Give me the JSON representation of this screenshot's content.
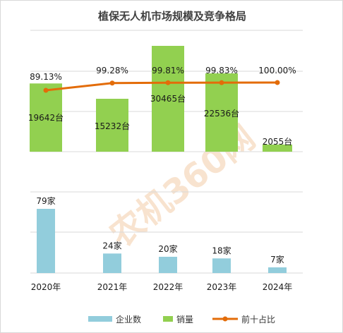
{
  "chart_data": {
    "type": "bar",
    "title": "植保无人机市场规模及竞争格局",
    "categories": [
      "2020年",
      "2021年",
      "2022年",
      "2023年",
      "2024年"
    ],
    "series": [
      {
        "name": "企业数",
        "type": "bar",
        "values": [
          79,
          24,
          20,
          18,
          7
        ],
        "labels": [
          "79家",
          "24家",
          "20家",
          "18家",
          "7家"
        ],
        "color": "#92cddc"
      },
      {
        "name": "销量",
        "type": "bar",
        "values": [
          19642,
          15232,
          30465,
          22536,
          2055
        ],
        "labels": [
          "19642台",
          "15232台",
          "30465台",
          "22536台",
          "2055台"
        ],
        "color": "#92d050"
      },
      {
        "name": "前十占比",
        "type": "line",
        "values": [
          89.13,
          99.28,
          99.81,
          99.83,
          100.0
        ],
        "labels": [
          "89.13%",
          "99.28%",
          "99.81%",
          "99.83%",
          "100.00%"
        ],
        "color": "#e36c09"
      }
    ],
    "legend_position": "bottom",
    "grid": true,
    "watermark": "农机360网"
  }
}
